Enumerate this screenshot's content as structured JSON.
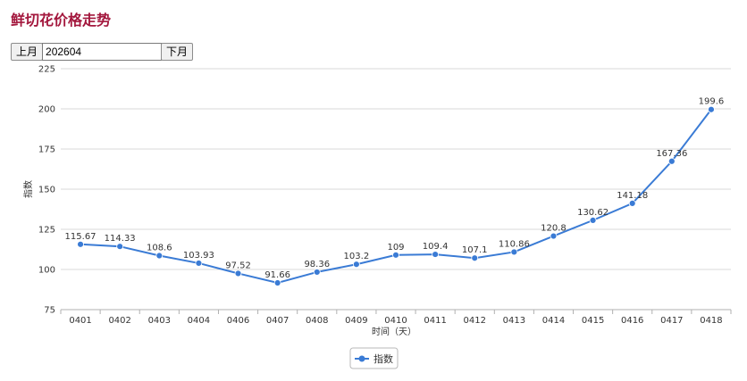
{
  "title": "鲜切花价格走势",
  "nav": {
    "prev_label": "上月",
    "month_value": "202604",
    "next_label": "下月"
  },
  "colors": {
    "title": "#a3173d",
    "series": "#3a7bd5",
    "grid": "#d8d8d8"
  },
  "chart_data": {
    "type": "line",
    "categories": [
      "0401",
      "0402",
      "0403",
      "0404",
      "0406",
      "0407",
      "0408",
      "0409",
      "0410",
      "0411",
      "0412",
      "0413",
      "0414",
      "0415",
      "0416",
      "0417",
      "0418"
    ],
    "series": [
      {
        "name": "指数",
        "values": [
          115.67,
          114.33,
          108.6,
          103.93,
          97.52,
          91.66,
          98.36,
          103.2,
          109,
          109.4,
          107.1,
          110.86,
          120.8,
          130.62,
          141.18,
          167.36,
          199.6
        ],
        "labels": [
          "115.67",
          "114.33",
          "108.6",
          "103.93",
          "97.52",
          "91.66",
          "98.36",
          "103.2",
          "109",
          "109.4",
          "107.1",
          "110.86",
          "120.8",
          "130.62",
          "141.18",
          "167.36",
          "199.6"
        ]
      }
    ],
    "xlabel": "时间（天）",
    "ylabel": "指数",
    "ylim": [
      75,
      225
    ],
    "yticks": [
      "75",
      "100",
      "125",
      "150",
      "175",
      "200",
      "225"
    ],
    "grid": "horizontal",
    "legend": "bottom-center"
  }
}
